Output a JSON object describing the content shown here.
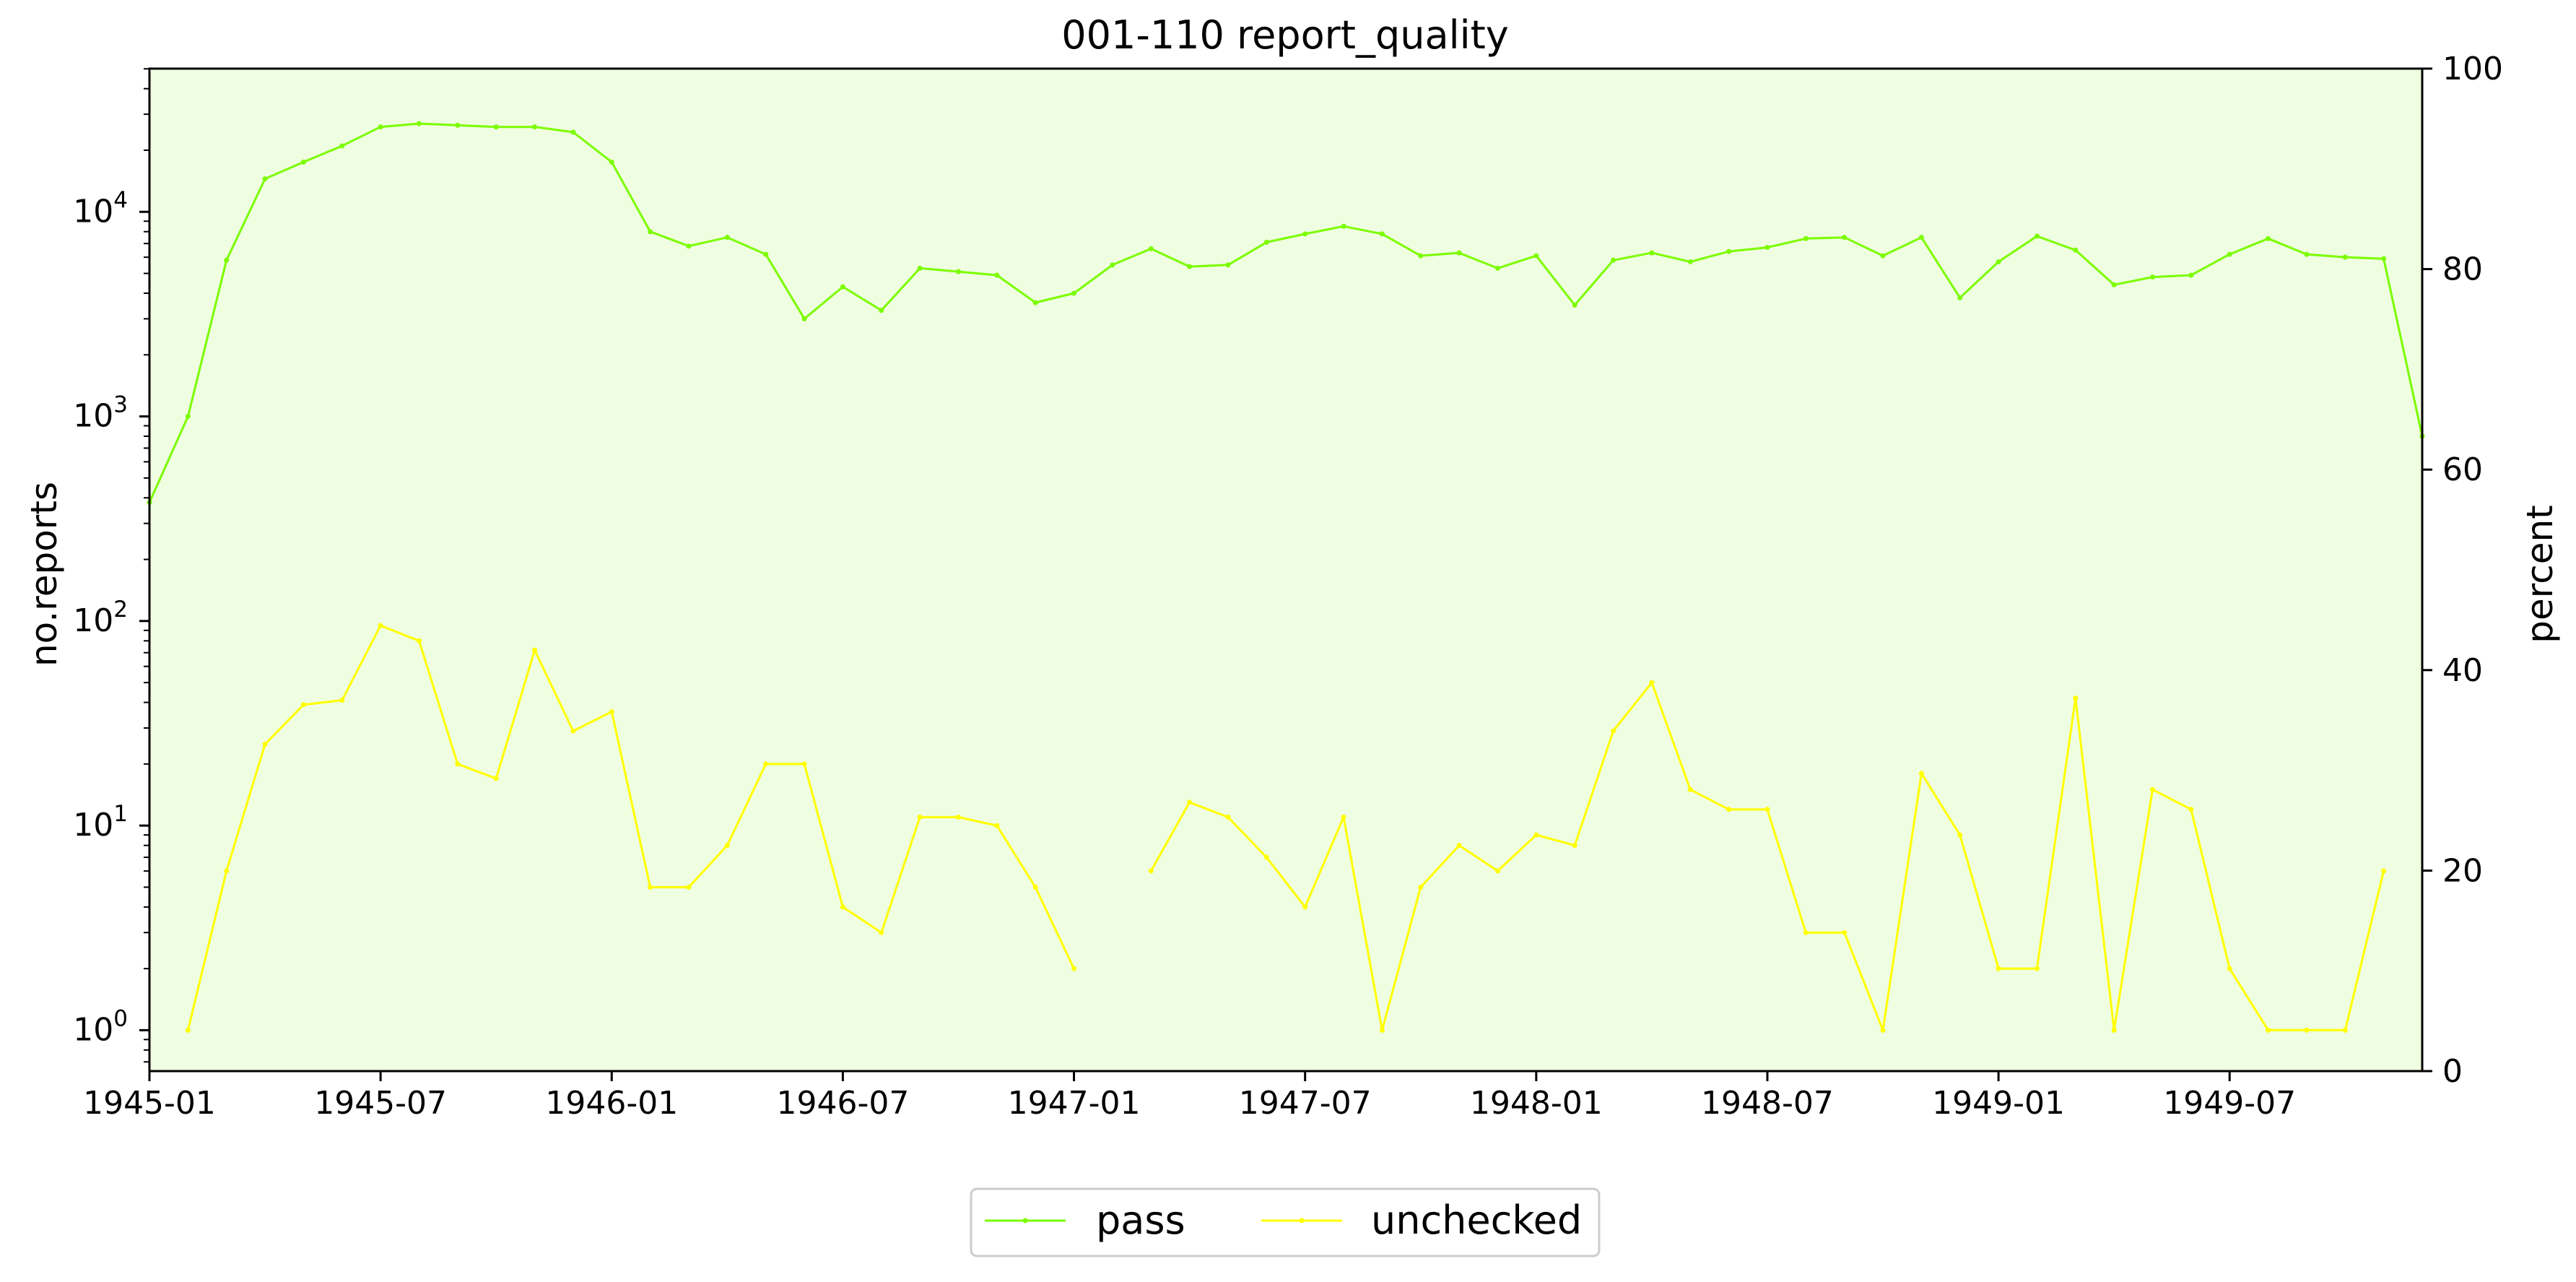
{
  "chart_data": {
    "type": "line",
    "title": "001-110 report_quality",
    "ylabel": "no.reports",
    "y2label": "percent",
    "yscale": "log",
    "ylim_log10": [
      -0.2,
      4.7
    ],
    "y2lim": [
      0,
      100
    ],
    "y2ticks": [
      "0",
      "20",
      "40",
      "60",
      "80",
      "100"
    ],
    "yticks": [
      {
        "exp": 0,
        "base": "10",
        "sup": "0"
      },
      {
        "exp": 1,
        "base": "10",
        "sup": "1"
      },
      {
        "exp": 2,
        "base": "10",
        "sup": "2"
      },
      {
        "exp": 3,
        "base": "10",
        "sup": "3"
      },
      {
        "exp": 4,
        "base": "10",
        "sup": "4"
      }
    ],
    "xlim_months": [
      0,
      59
    ],
    "xticks": [
      {
        "month": 0,
        "label": "1945-01"
      },
      {
        "month": 6,
        "label": "1945-07"
      },
      {
        "month": 12,
        "label": "1946-01"
      },
      {
        "month": 18,
        "label": "1946-07"
      },
      {
        "month": 24,
        "label": "1947-01"
      },
      {
        "month": 30,
        "label": "1947-07"
      },
      {
        "month": 36,
        "label": "1948-01"
      },
      {
        "month": 42,
        "label": "1948-07"
      },
      {
        "month": 48,
        "label": "1949-01"
      },
      {
        "month": 54,
        "label": "1949-07"
      }
    ],
    "x_start": "1945-01",
    "background": "#effde0",
    "series": [
      {
        "name": "pass",
        "color": "#7cfc00",
        "values": [
          380,
          1000,
          5800,
          14500,
          17500,
          21000,
          26000,
          27000,
          26500,
          26000,
          26000,
          24500,
          17500,
          8000,
          6800,
          7500,
          6200,
          3000,
          4300,
          3300,
          5300,
          5100,
          4900,
          3600,
          4000,
          5500,
          6600,
          5400,
          5500,
          7100,
          7800,
          8500,
          7800,
          6100,
          6300,
          5300,
          6100,
          3500,
          5800,
          6300,
          5700,
          6400,
          6700,
          7400,
          7500,
          6100,
          7500,
          3800,
          5700,
          7600,
          6500,
          4400,
          4800,
          4900,
          6200,
          7400,
          6200,
          6000,
          5900,
          800
        ]
      },
      {
        "name": "unchecked",
        "color": "#ffff00",
        "values": [
          null,
          1,
          6,
          25,
          39,
          41,
          95,
          80,
          20,
          17,
          72,
          29,
          36,
          5,
          5,
          8,
          20,
          20,
          4,
          3,
          11,
          11,
          10,
          5,
          2,
          null,
          6,
          13,
          11,
          7,
          4,
          11,
          1,
          5,
          8,
          6,
          9,
          8,
          29,
          50,
          15,
          12,
          12,
          3,
          3,
          1,
          18,
          9,
          2,
          2,
          42,
          1,
          15,
          12,
          2,
          1,
          1,
          1,
          6,
          null
        ]
      }
    ],
    "legend": {
      "placement": "bottom-center",
      "ncol": 2
    }
  }
}
